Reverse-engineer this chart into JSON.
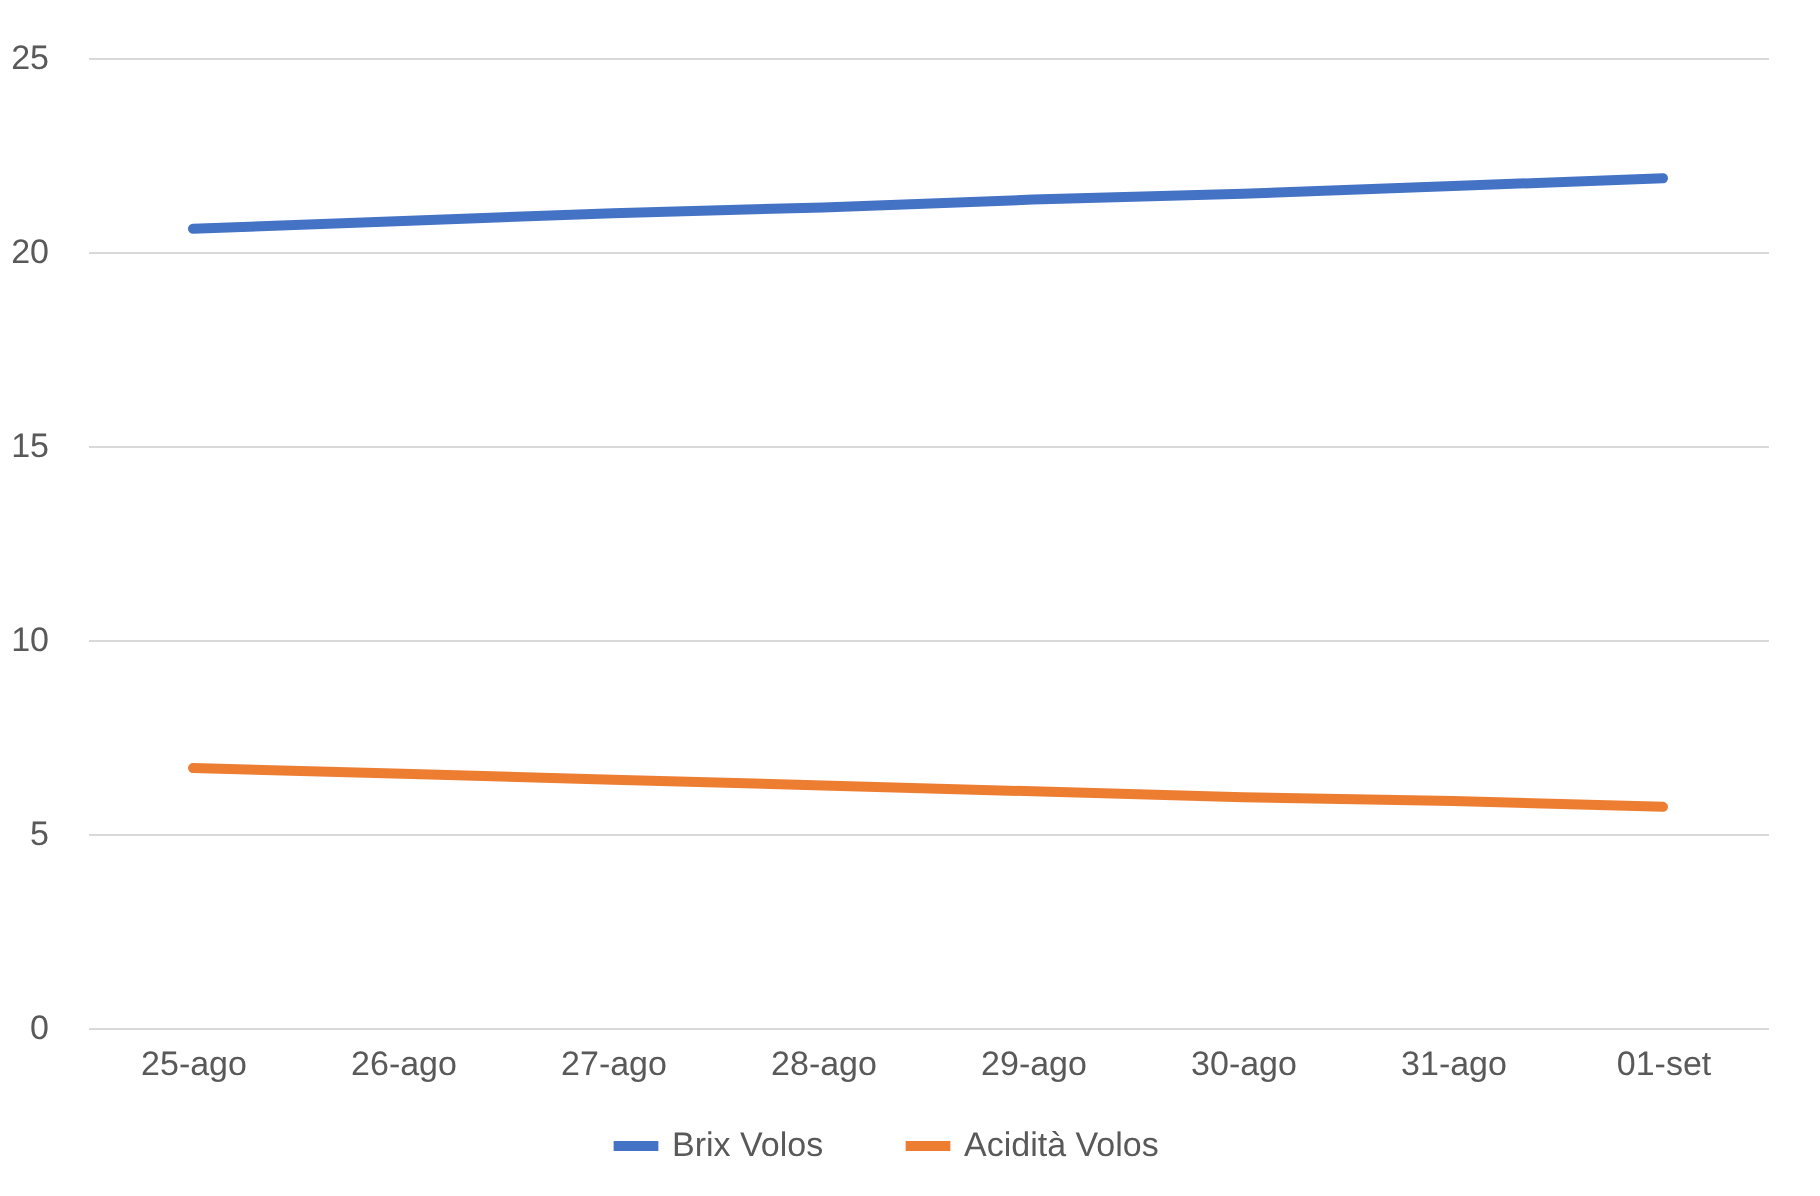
{
  "chart_data": {
    "type": "line",
    "categories": [
      "25-ago",
      "26-ago",
      "27-ago",
      "28-ago",
      "29-ago",
      "30-ago",
      "31-ago",
      "01-set"
    ],
    "series": [
      {
        "name": "Brix Volos",
        "color": "#4472c4",
        "values": [
          20.6,
          20.8,
          21.0,
          21.15,
          21.35,
          21.5,
          21.7,
          21.9
        ]
      },
      {
        "name": "Acidità Volos",
        "color": "#ed7d31",
        "values": [
          6.7,
          6.55,
          6.4,
          6.25,
          6.1,
          5.95,
          5.85,
          5.7
        ]
      }
    ],
    "ylim": [
      0,
      25
    ],
    "yticks": [
      0,
      5,
      10,
      15,
      20,
      25
    ],
    "grid": "y",
    "legend": "bottom",
    "marker": "none",
    "line_style": "solid"
  }
}
